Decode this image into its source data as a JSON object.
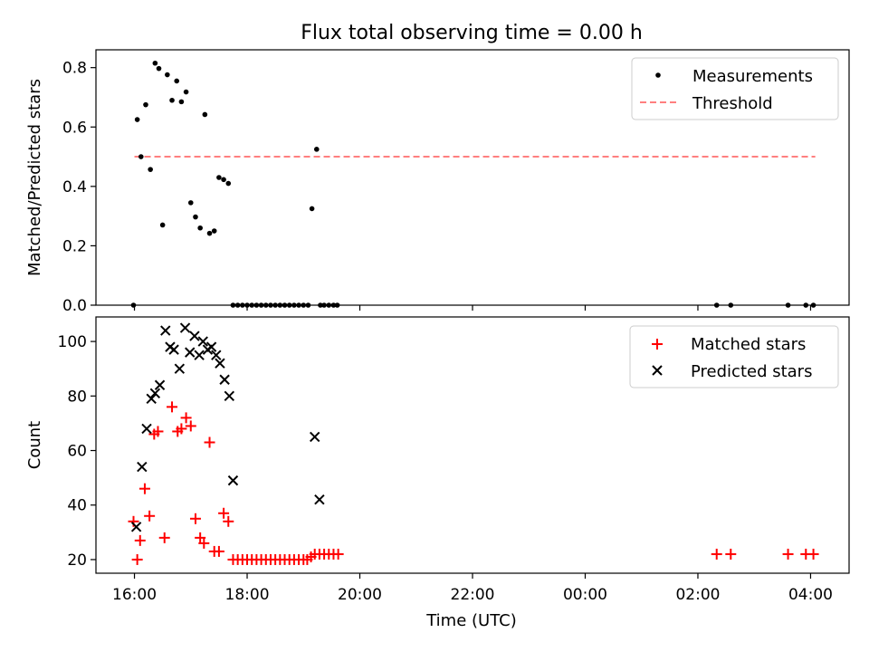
{
  "chart_data": [
    {
      "type": "scatter",
      "title": "Flux total observing time = 0.00 h",
      "xlabel": "",
      "ylabel": "Matched/Predicted stars",
      "xlim": [
        "15:19",
        "04:41"
      ],
      "ylim": [
        0,
        0.86
      ],
      "y_ticks": [
        0.0,
        0.2,
        0.4,
        0.6,
        0.8
      ],
      "y_tick_labels": [
        "0.0",
        "0.2",
        "0.4",
        "0.6",
        "0.8"
      ],
      "x_ticks": [
        "16:00",
        "18:00",
        "20:00",
        "22:00",
        "00:00",
        "02:00",
        "04:00"
      ],
      "x_tick_labels_shown": false,
      "legend": {
        "position": "top-right",
        "entries": [
          "Measurements",
          "Threshold"
        ]
      },
      "threshold": {
        "value": 0.5,
        "x_start": "16:00",
        "x_end": "04:05",
        "color": "#ff7f7f",
        "style": "dashed"
      },
      "series": [
        {
          "name": "Measurements",
          "marker": "dot",
          "color": "#000000",
          "x": [
            "15:59",
            "16:03",
            "16:07",
            "16:12",
            "16:17",
            "16:22",
            "16:26",
            "16:30",
            "16:35",
            "16:40",
            "16:45",
            "16:50",
            "16:55",
            "17:00",
            "17:05",
            "17:10",
            "17:15",
            "17:20",
            "17:25",
            "17:30",
            "17:35",
            "17:40",
            "17:45",
            "17:50",
            "17:55",
            "18:00",
            "18:05",
            "18:10",
            "18:15",
            "18:20",
            "18:25",
            "18:30",
            "18:35",
            "18:40",
            "18:45",
            "18:50",
            "18:55",
            "19:00",
            "19:05",
            "19:09",
            "19:14",
            "19:18",
            "19:22",
            "19:27",
            "19:32",
            "19:36",
            "02:20",
            "02:35",
            "03:36",
            "03:55",
            "04:03"
          ],
          "y": [
            0.0,
            0.625,
            0.5,
            0.675,
            0.457,
            0.815,
            0.797,
            0.27,
            0.776,
            0.69,
            0.755,
            0.685,
            0.718,
            0.345,
            0.297,
            0.26,
            0.642,
            0.242,
            0.25,
            0.43,
            0.423,
            0.41,
            0.0,
            0.0,
            0.0,
            0.0,
            0.0,
            0.0,
            0.0,
            0.0,
            0.0,
            0.0,
            0.0,
            0.0,
            0.0,
            0.0,
            0.0,
            0.0,
            0.0,
            0.325,
            0.525,
            0.0,
            0.0,
            0.0,
            0.0,
            0.0,
            0.0,
            0.0,
            0.0,
            0.0,
            0.0
          ]
        }
      ]
    },
    {
      "type": "scatter",
      "title": "",
      "xlabel": "Time (UTC)",
      "ylabel": "Count",
      "xlim": [
        "15:19",
        "04:41"
      ],
      "ylim": [
        15,
        109
      ],
      "y_ticks": [
        20,
        40,
        60,
        80,
        100
      ],
      "y_tick_labels": [
        "20",
        "40",
        "60",
        "80",
        "100"
      ],
      "x_ticks": [
        "16:00",
        "18:00",
        "20:00",
        "22:00",
        "00:00",
        "02:00",
        "04:00"
      ],
      "x_tick_labels": [
        "16:00",
        "18:00",
        "20:00",
        "22:00",
        "00:00",
        "02:00",
        "04:00"
      ],
      "legend": {
        "position": "top-right",
        "entries": [
          "Matched stars",
          "Predicted stars"
        ]
      },
      "series": [
        {
          "name": "Matched stars",
          "marker": "plus",
          "color": "#ff0000",
          "x": [
            "15:59",
            "16:03",
            "16:06",
            "16:11",
            "16:16",
            "16:21",
            "16:25",
            "16:32",
            "16:40",
            "16:46",
            "16:50",
            "16:55",
            "17:00",
            "17:05",
            "17:10",
            "17:14",
            "17:20",
            "17:25",
            "17:30",
            "17:35",
            "17:40",
            "17:45",
            "17:50",
            "17:55",
            "18:00",
            "18:05",
            "18:10",
            "18:15",
            "18:20",
            "18:25",
            "18:30",
            "18:35",
            "18:40",
            "18:45",
            "18:50",
            "18:55",
            "19:00",
            "19:04",
            "19:08",
            "19:12",
            "19:17",
            "19:22",
            "19:27",
            "19:32",
            "19:37",
            "02:20",
            "02:35",
            "03:36",
            "03:55",
            "04:03"
          ],
          "y": [
            34,
            20,
            27,
            46,
            36,
            66,
            67,
            28,
            76,
            67,
            68,
            72,
            69,
            35,
            28,
            26,
            63,
            23,
            23,
            37,
            34,
            20,
            20,
            20,
            20,
            20,
            20,
            20,
            20,
            20,
            20,
            20,
            20,
            20,
            20,
            20,
            20,
            20,
            21,
            22,
            22,
            22,
            22,
            22,
            22,
            22,
            22,
            22,
            22,
            22
          ]
        },
        {
          "name": "Predicted stars",
          "marker": "x",
          "color": "#000000",
          "x": [
            "16:02",
            "16:08",
            "16:13",
            "16:18",
            "16:22",
            "16:27",
            "16:33",
            "16:38",
            "16:42",
            "16:48",
            "16:54",
            "16:59",
            "17:04",
            "17:09",
            "17:13",
            "17:18",
            "17:22",
            "17:27",
            "17:31",
            "17:36",
            "17:41",
            "17:45",
            "19:12",
            "19:17"
          ],
          "y": [
            32,
            54,
            68,
            79,
            81,
            84,
            104,
            98,
            97,
            90,
            105,
            96,
            102,
            95,
            100,
            97,
            98,
            95,
            92,
            86,
            80,
            49,
            65,
            42
          ]
        }
      ]
    }
  ]
}
